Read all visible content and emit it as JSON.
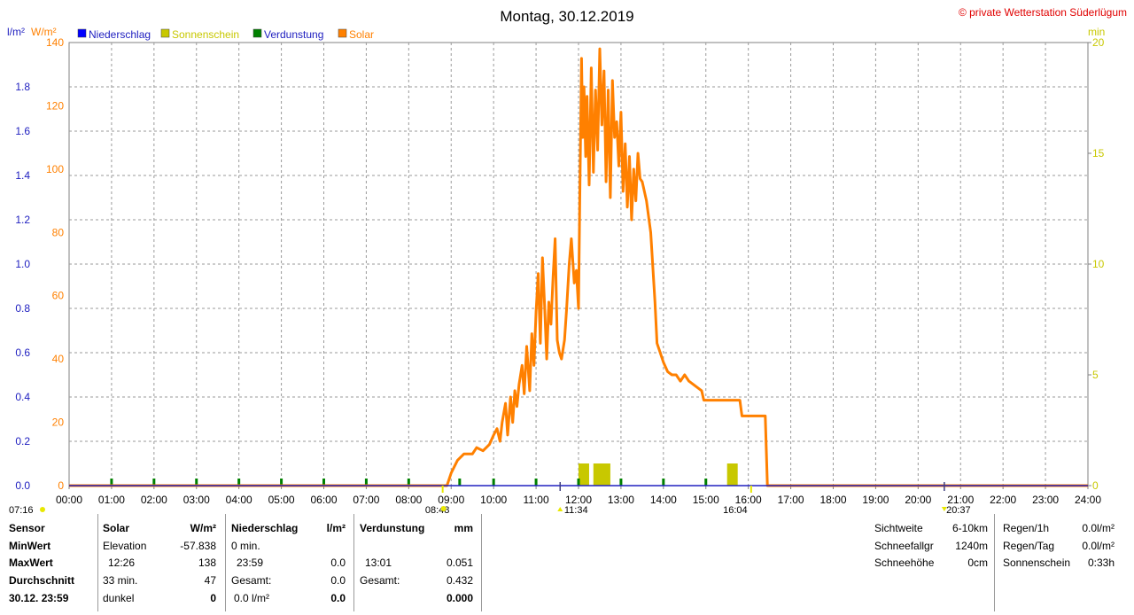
{
  "header": {
    "title": "Montag, 30.12.2019",
    "copyright": "© private Wetterstation Süderlügum",
    "left_unit_1": "l/m²",
    "left_unit_2": "W/m²",
    "right_unit": "min"
  },
  "colors": {
    "solar": "#ff8000",
    "sunshine": "#c8c800",
    "precip": "#0000ff",
    "evap": "#008000",
    "left_axis_1": "#2020c0",
    "left_axis_2": "#ff8000",
    "right_axis": "#c8c800",
    "copyright": "#e00000"
  },
  "chart_data": {
    "type": "line",
    "title": "Montag, 30.12.2019",
    "legend": [
      {
        "name": "Niederschlag",
        "color": "#0000ff"
      },
      {
        "name": "Sonnenschein",
        "color": "#c8c800"
      },
      {
        "name": "Verdunstung",
        "color": "#008000"
      },
      {
        "name": "Solar",
        "color": "#ff8000"
      }
    ],
    "x_ticks": [
      "00:00",
      "01:00",
      "02:00",
      "03:00",
      "04:00",
      "05:00",
      "06:00",
      "07:00",
      "08:00",
      "09:00",
      "10:00",
      "11:00",
      "12:00",
      "13:00",
      "14:00",
      "15:00",
      "16:00",
      "17:00",
      "18:00",
      "19:00",
      "20:00",
      "21:00",
      "22:00",
      "23:00",
      "24:00"
    ],
    "y_left_precip_ticks": [
      "0.0",
      "0.2",
      "0.4",
      "0.6",
      "0.8",
      "1.0",
      "1.2",
      "1.4",
      "1.6",
      "1.8"
    ],
    "y_left_solar_ticks": [
      "0",
      "20",
      "40",
      "60",
      "80",
      "100",
      "120",
      "140"
    ],
    "y_right_min_ticks": [
      "0",
      "5",
      "10",
      "15",
      "20"
    ],
    "ylim_solar": [
      0,
      140
    ],
    "ylim_precip": [
      0,
      2.0
    ],
    "ylim_sunshine_min": [
      0,
      20
    ],
    "xlim_hours": [
      0,
      24
    ],
    "grid": true,
    "legend_placement": "top-left",
    "solar_series": {
      "name": "Solar",
      "x_hours": [
        0,
        8.9,
        9.0,
        9.15,
        9.3,
        9.5,
        9.6,
        9.75,
        9.9,
        10.0,
        10.08,
        10.15,
        10.2,
        10.28,
        10.33,
        10.4,
        10.45,
        10.5,
        10.55,
        10.6,
        10.67,
        10.72,
        10.78,
        10.85,
        10.9,
        10.95,
        11.0,
        11.05,
        11.1,
        11.15,
        11.2,
        11.25,
        11.3,
        11.35,
        11.4,
        11.45,
        11.5,
        11.55,
        11.6,
        11.67,
        11.72,
        11.78,
        11.83,
        11.9,
        11.95,
        12.0,
        12.03,
        12.07,
        12.1,
        12.13,
        12.17,
        12.2,
        12.25,
        12.3,
        12.35,
        12.4,
        12.45,
        12.5,
        12.55,
        12.6,
        12.65,
        12.7,
        12.75,
        12.8,
        12.85,
        12.9,
        12.95,
        13.0,
        13.05,
        13.1,
        13.15,
        13.2,
        13.25,
        13.3,
        13.35,
        13.4,
        13.45,
        13.5,
        13.6,
        13.7,
        13.8,
        13.85,
        13.9,
        14.0,
        14.1,
        14.2,
        14.3,
        14.4,
        14.5,
        14.6,
        14.7,
        14.8,
        14.9,
        14.95,
        15.2,
        15.4,
        15.6,
        15.8,
        15.85,
        16.0,
        16.2,
        16.35,
        16.4,
        16.45,
        24
      ],
      "values": [
        0,
        0,
        4,
        8,
        10,
        10,
        12,
        11,
        13,
        16,
        18,
        14,
        20,
        26,
        16,
        28,
        20,
        30,
        25,
        32,
        38,
        29,
        44,
        30,
        48,
        38,
        55,
        67,
        45,
        72,
        57,
        40,
        58,
        51,
        66,
        78,
        46,
        42,
        40,
        46,
        56,
        70,
        78,
        64,
        68,
        56,
        90,
        135,
        110,
        126,
        104,
        123,
        95,
        132,
        99,
        125,
        106,
        138,
        114,
        131,
        96,
        125,
        91,
        128,
        110,
        115,
        101,
        118,
        93,
        108,
        88,
        104,
        84,
        100,
        90,
        105,
        97,
        96,
        90,
        80,
        58,
        45,
        43,
        39,
        36,
        35,
        35,
        33,
        35,
        33,
        32,
        31,
        30,
        27,
        27,
        27,
        27,
        27,
        22,
        22,
        22,
        22,
        22,
        0,
        0
      ]
    },
    "sunshine_series": {
      "name": "Sonnenschein",
      "unit": "min",
      "bars": [
        {
          "from_hour": 12.0,
          "to_hour": 12.25,
          "value": 1
        },
        {
          "from_hour": 12.35,
          "to_hour": 12.75,
          "value": 1
        },
        {
          "from_hour": 15.5,
          "to_hour": 15.75,
          "value": 1
        }
      ]
    },
    "evap_series": {
      "name": "Verdunstung",
      "tick_hours": [
        1,
        2,
        3,
        4,
        5,
        6,
        7,
        8,
        9.2,
        10,
        11,
        12,
        13,
        14,
        15
      ],
      "value": 0.01
    },
    "markers": {
      "sunrise": "08:48",
      "sunset": "16:04",
      "moon_set": "11:34",
      "moon_rise": "20:37",
      "left_marker": "07:16"
    }
  },
  "table": {
    "col1": {
      "title": "Sensor",
      "rows": [
        "MinWert",
        "MaxWert",
        "Durchschnitt",
        "30.12. 23:59"
      ]
    },
    "solar": {
      "title": "Solar",
      "unit": "W/m²",
      "labels": [
        "Elevation",
        "12:26",
        "33 min.",
        "dunkel"
      ],
      "values": [
        "-57.838",
        "138",
        "47",
        "0"
      ]
    },
    "precip": {
      "title": "Niederschlag",
      "unit": "l/m²",
      "labels": [
        "0 min.",
        "23:59",
        "Gesamt:",
        "0.0 l/m²"
      ],
      "values": [
        "",
        "0.0",
        "0.0",
        "0.0"
      ]
    },
    "evap": {
      "title": "Verdunstung",
      "unit": "mm",
      "labels": [
        "",
        "13:01",
        "Gesamt:",
        ""
      ],
      "values": [
        "",
        "0.051",
        "0.432",
        "0.000"
      ]
    },
    "extra1": {
      "labels": [
        "Sichtweite",
        "Schneefallgr",
        "Schneehöhe"
      ],
      "values": [
        "6-10km",
        "1240m",
        "0cm"
      ]
    },
    "extra2": {
      "labels": [
        "Regen/1h",
        "Regen/Tag",
        "Sonnenschein"
      ],
      "values": [
        "0.0l/m²",
        "0.0l/m²",
        "0:33h"
      ]
    }
  }
}
